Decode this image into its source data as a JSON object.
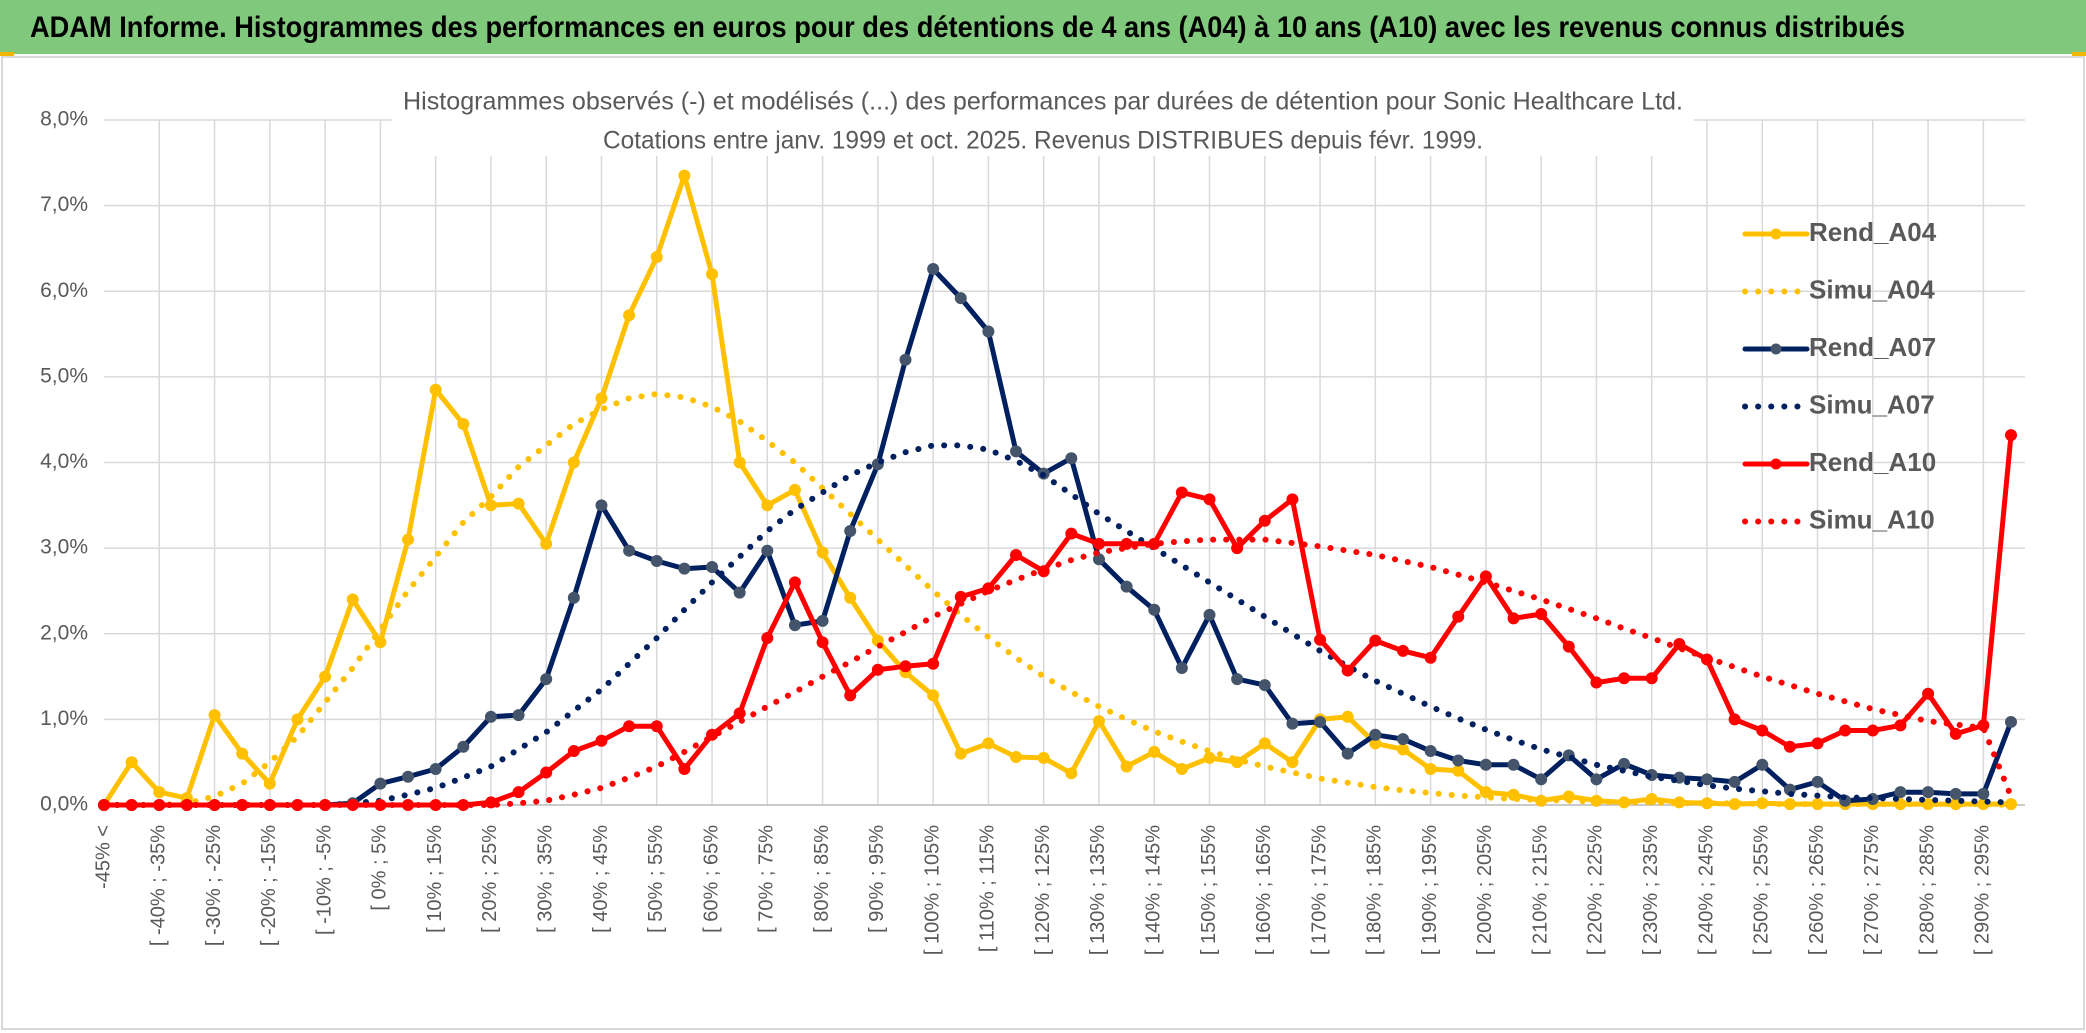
{
  "chart_data": {
    "type": "line",
    "header": "ADAM Informe. Histogrammes des performances en euros pour des détentions de 4 ans (A04) à 10 ans (A10) avec les revenus connus distribués",
    "title": "Histogrammes observés (-) et modélisés (...) des performances par durées de détention pour Sonic Healthcare Ltd.",
    "subtitle": "Cotations entre janv. 1999 et oct. 2025. Revenus DISTRIBUES depuis févr. 1999.",
    "categories": [
      "-45% <",
      null,
      "[ -40% ; -35%",
      null,
      "[ -30% ; -25%",
      null,
      "[ -20% ; -15%",
      null,
      "[ -10% ; -5%",
      null,
      "[ 0% ; 5%",
      null,
      "[ 10% ; 15%",
      null,
      "[ 20% ; 25%",
      null,
      "[ 30% ; 35%",
      null,
      "[ 40% ; 45%",
      null,
      "[ 50% ; 55%",
      null,
      "[ 60% ; 65%",
      null,
      "[ 70% ; 75%",
      null,
      "[ 80% ; 85%",
      null,
      "[ 90% ; 95%",
      null,
      "[ 100% ; 105%",
      null,
      "[ 110% ; 115%",
      null,
      "[ 120% ; 125%",
      null,
      "[ 130% ; 135%",
      null,
      "[ 140% ; 145%",
      null,
      "[ 150% ; 155%",
      null,
      "[ 160% ; 165%",
      null,
      "[ 170% ; 175%",
      null,
      "[ 180% ; 185%",
      null,
      "[ 190% ; 195%",
      null,
      "[ 200% ; 205%",
      null,
      "[ 210% ; 215%",
      null,
      "[ 220% ; 225%",
      null,
      "[ 230% ; 235%",
      null,
      "[ 240% ; 245%",
      null,
      "[ 250% ; 255%",
      null,
      "[ 260% ; 265%",
      null,
      "[ 270% ; 275%",
      null,
      "[ 280% ; 285%",
      null,
      "[ 290% ; 295%",
      null
    ],
    "ylim": [
      0,
      8
    ],
    "yticks": [
      {
        "value": 0,
        "label": "0,0%"
      },
      {
        "value": 1,
        "label": "1,0%"
      },
      {
        "value": 2,
        "label": "2,0%"
      },
      {
        "value": 3,
        "label": "3,0%"
      },
      {
        "value": 4,
        "label": "4,0%"
      },
      {
        "value": 5,
        "label": "5,0%"
      },
      {
        "value": 6,
        "label": "6,0%"
      },
      {
        "value": 7,
        "label": "7,0%"
      },
      {
        "value": 8,
        "label": "8,0%"
      }
    ],
    "grid": true,
    "legend": "right",
    "series": [
      {
        "name": "Rend_A04",
        "color": "#ffc000",
        "style": "solid",
        "markers": true,
        "values": [
          0,
          0.5,
          0.15,
          0.08,
          1.05,
          0.6,
          0.25,
          1.0,
          1.5,
          2.4,
          1.9,
          3.1,
          4.85,
          4.45,
          3.5,
          3.52,
          3.05,
          4.0,
          4.75,
          5.72,
          6.4,
          7.35,
          6.2,
          4.0,
          3.5,
          3.68,
          2.95,
          2.42,
          1.92,
          1.55,
          1.28,
          0.6,
          0.72,
          0.56,
          0.55,
          0.37,
          0.98,
          0.45,
          0.62,
          0.42,
          0.55,
          0.5,
          0.72,
          0.5,
          1.0,
          1.03,
          0.72,
          0.65,
          0.42,
          0.4,
          0.15,
          0.12,
          0.05,
          0.1,
          0.05,
          0.03,
          0.07,
          0.03,
          0.02,
          0.01,
          0.02,
          0.01,
          0.01,
          0.01,
          0.01,
          0.01,
          0.01,
          0.01,
          0.01,
          0.01
        ]
      },
      {
        "name": "Simu_A04",
        "color": "#ffc000",
        "style": "dotted",
        "markers": false,
        "values": [
          0,
          0,
          0,
          0.02,
          0.1,
          0.25,
          0.5,
          0.8,
          1.2,
          1.6,
          2.05,
          2.5,
          2.9,
          3.3,
          3.6,
          3.95,
          4.2,
          4.45,
          4.62,
          4.75,
          4.8,
          4.76,
          4.65,
          4.48,
          4.25,
          4.0,
          3.7,
          3.4,
          3.1,
          2.8,
          2.5,
          2.22,
          1.96,
          1.72,
          1.5,
          1.32,
          1.15,
          1.0,
          0.86,
          0.74,
          0.63,
          0.53,
          0.45,
          0.38,
          0.31,
          0.26,
          0.21,
          0.17,
          0.14,
          0.11,
          0.09,
          0.07,
          0.06,
          0.05,
          0.04,
          0.03,
          0.03,
          0.02,
          0.02,
          0.02,
          0.01,
          0.01,
          0.01,
          0.01,
          0.01,
          0.01,
          0.01,
          0.01,
          0.01,
          0
        ]
      },
      {
        "name": "Rend_A07",
        "color": "#002060",
        "marker_color": "#44546a",
        "style": "solid",
        "markers": true,
        "values": [
          0,
          0,
          0,
          0,
          0,
          0,
          0,
          0,
          0,
          0.02,
          0.25,
          0.33,
          0.42,
          0.68,
          1.03,
          1.05,
          1.47,
          2.42,
          3.5,
          2.97,
          2.85,
          2.76,
          2.78,
          2.48,
          2.97,
          2.1,
          2.15,
          3.2,
          3.98,
          5.2,
          6.26,
          5.92,
          5.53,
          4.13,
          3.87,
          4.05,
          2.87,
          2.55,
          2.28,
          1.6,
          2.22,
          1.47,
          1.4,
          0.95,
          0.97,
          0.6,
          0.82,
          0.77,
          0.63,
          0.52,
          0.47,
          0.47,
          0.3,
          0.58,
          0.3,
          0.48,
          0.35,
          0.32,
          0.3,
          0.27,
          0.47,
          0.18,
          0.27,
          0.05,
          0.07,
          0.15,
          0.15,
          0.13,
          0.13,
          0.97
        ]
      },
      {
        "name": "Simu_A07",
        "color": "#002060",
        "style": "dotted",
        "markers": false,
        "values": [
          0,
          0,
          0,
          0,
          0,
          0,
          0,
          0,
          0,
          0.02,
          0.05,
          0.12,
          0.2,
          0.32,
          0.45,
          0.65,
          0.85,
          1.1,
          1.35,
          1.65,
          1.95,
          2.28,
          2.6,
          2.9,
          3.2,
          3.45,
          3.65,
          3.85,
          4.0,
          4.12,
          4.2,
          4.2,
          4.15,
          4.02,
          3.85,
          3.63,
          3.4,
          3.2,
          3.0,
          2.8,
          2.6,
          2.4,
          2.2,
          2.0,
          1.8,
          1.62,
          1.45,
          1.3,
          1.15,
          1.01,
          0.88,
          0.76,
          0.65,
          0.56,
          0.47,
          0.4,
          0.33,
          0.28,
          0.23,
          0.19,
          0.16,
          0.13,
          0.11,
          0.09,
          0.08,
          0.07,
          0.06,
          0.05,
          0.04,
          0.03
        ]
      },
      {
        "name": "Rend_A10",
        "color": "#ff0000",
        "style": "solid",
        "markers": true,
        "values": [
          0,
          0,
          0,
          0,
          0,
          0,
          0,
          0,
          0,
          0,
          0,
          0,
          0,
          0,
          0.03,
          0.15,
          0.38,
          0.63,
          0.75,
          0.92,
          0.92,
          0.42,
          0.82,
          1.07,
          1.95,
          2.6,
          1.9,
          1.28,
          1.58,
          1.62,
          1.65,
          2.43,
          2.53,
          2.92,
          2.73,
          3.17,
          3.05,
          3.05,
          3.05,
          3.65,
          3.57,
          3.0,
          3.32,
          3.57,
          1.93,
          1.57,
          1.92,
          1.8,
          1.72,
          2.2,
          2.67,
          2.18,
          2.23,
          1.85,
          1.43,
          1.48,
          1.48,
          1.88,
          1.7,
          1.0,
          0.87,
          0.68,
          0.72,
          0.87,
          0.87,
          0.93,
          1.3,
          0.83,
          0.93,
          4.32
        ]
      },
      {
        "name": "Simu_A10",
        "color": "#ff0000",
        "style": "dotted",
        "markers": false,
        "values": [
          0,
          0,
          0,
          0,
          0,
          0,
          0,
          0,
          0,
          0,
          0,
          0,
          0,
          0,
          0,
          0.02,
          0.05,
          0.12,
          0.2,
          0.32,
          0.45,
          0.62,
          0.8,
          0.97,
          1.15,
          1.32,
          1.5,
          1.67,
          1.85,
          2.02,
          2.2,
          2.35,
          2.5,
          2.63,
          2.75,
          2.86,
          2.95,
          3.0,
          3.05,
          3.08,
          3.1,
          3.1,
          3.1,
          3.06,
          3.02,
          2.97,
          2.92,
          2.85,
          2.78,
          2.69,
          2.6,
          2.5,
          2.4,
          2.29,
          2.18,
          2.06,
          1.95,
          1.83,
          1.72,
          1.61,
          1.5,
          1.4,
          1.3,
          1.21,
          1.12,
          1.05,
          0.98,
          0.94,
          0.9,
          0.1
        ]
      }
    ]
  }
}
